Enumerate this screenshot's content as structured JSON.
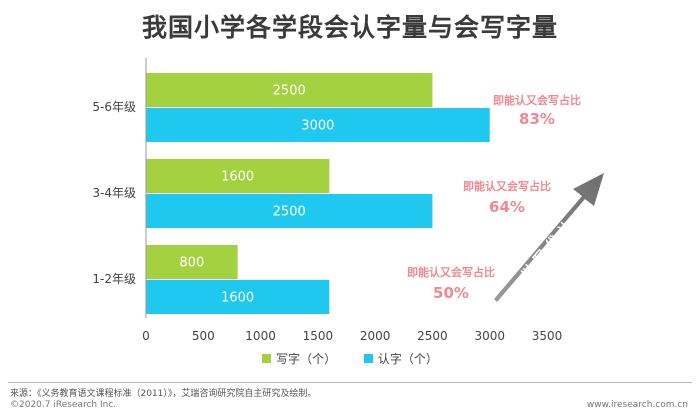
{
  "chart_data": {
    "type": "bar",
    "orientation": "horizontal",
    "title": "我国小学各学段会认字量与会写字量",
    "categories": [
      "5-6年级",
      "3-4年级",
      "1-2年级"
    ],
    "series": [
      {
        "name": "写字（个）",
        "values": [
          2500,
          1600,
          800
        ],
        "color": "#a3d13f"
      },
      {
        "name": "认字（个）",
        "values": [
          3000,
          2500,
          1600
        ],
        "color": "#1ec8ef"
      }
    ],
    "xlim": [
      0,
      3500
    ],
    "xticks": [
      0,
      500,
      1000,
      1500,
      2000,
      2500,
      3000,
      3500
    ],
    "grid": false,
    "legend_position": "bottom",
    "annotations": [
      {
        "category": "5-6年级",
        "label": "即能认又会写占比",
        "value": "83%"
      },
      {
        "category": "3-4年级",
        "label": "即能认又会写占比",
        "value": "64%"
      },
      {
        "category": "1-2年级",
        "label": "即能认又会写占比",
        "value": "50%"
      }
    ],
    "arrow_label": "以写代认",
    "annotation_color": "#f08a92"
  },
  "footer": {
    "source": "来源：《义务教育语文课程标准（2011）》，艾瑞咨询研究院自主研究及绘制。",
    "copyright": "©2020.7 iResearch Inc.",
    "website": "www.iresearch.com.cn"
  }
}
